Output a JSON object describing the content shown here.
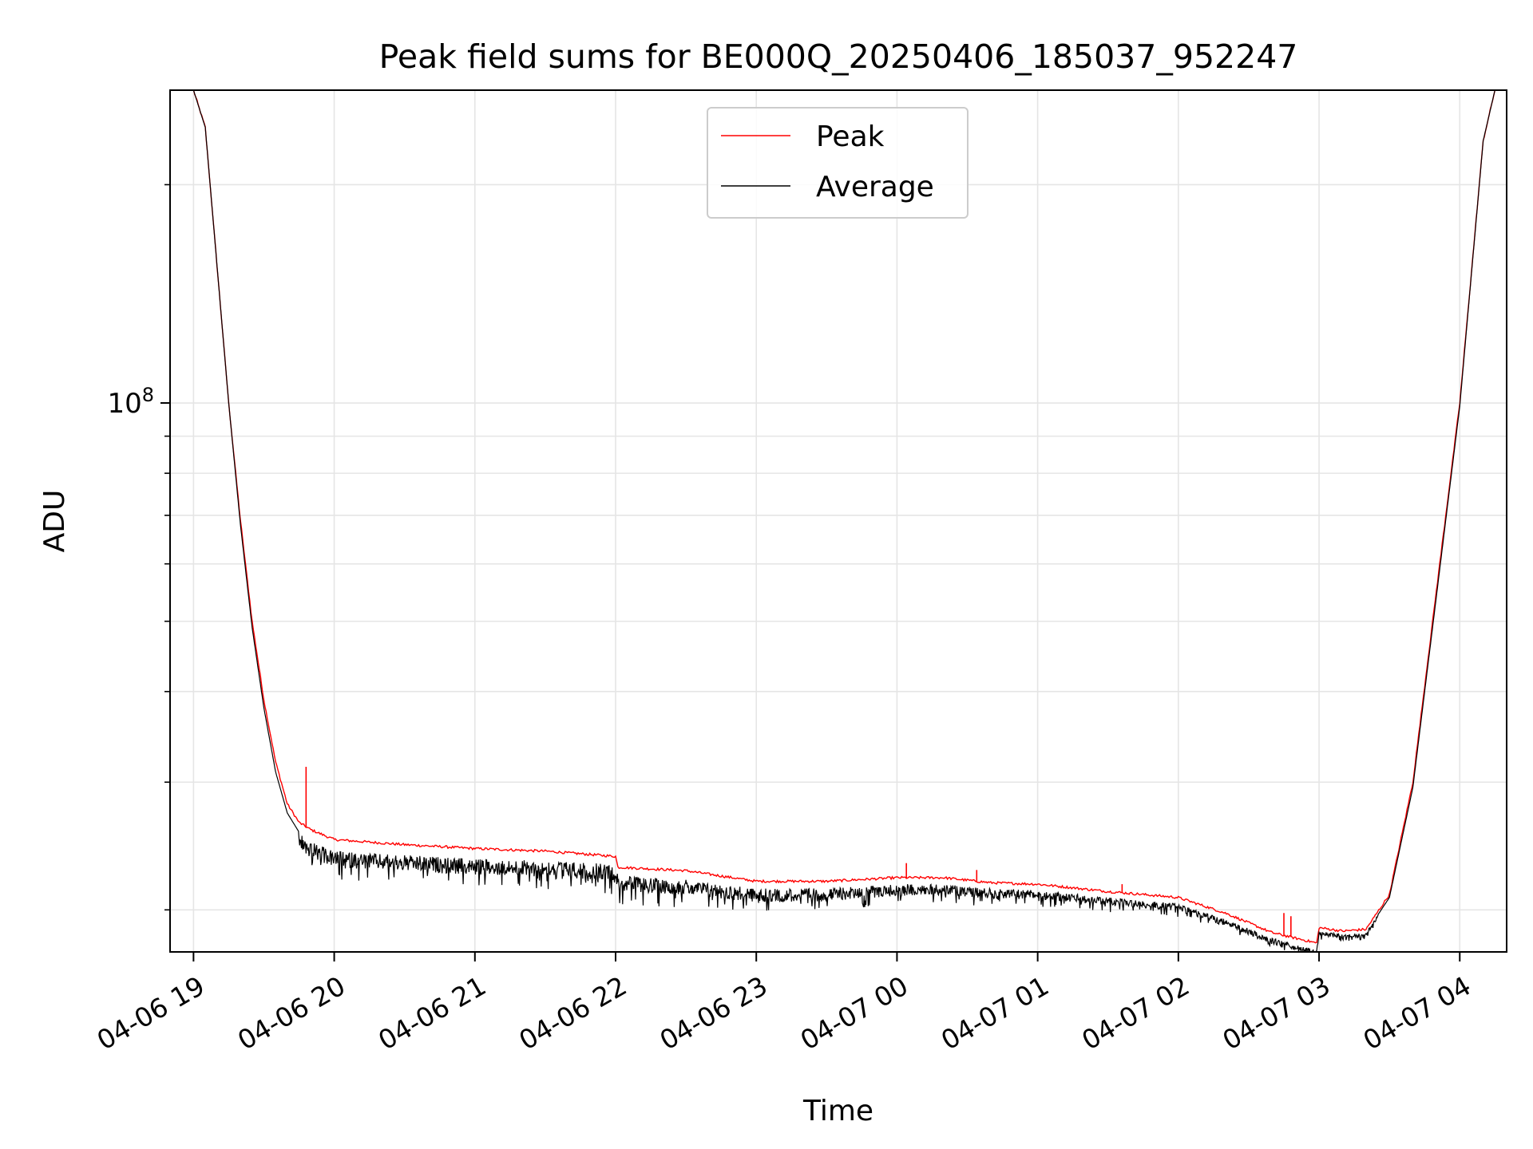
{
  "chart_data": {
    "type": "line",
    "title": "Peak field sums for BE000Q_20250406_185037_952247",
    "xlabel": "Time",
    "ylabel": "ADU",
    "yscale": "log",
    "ylim": [
      17500000,
      270000000
    ],
    "xlim": [
      "2025-04-06 18:50",
      "2025-04-07 04:20"
    ],
    "grid": true,
    "legend": "upper center",
    "x_ticks": [
      "04-06 19",
      "04-06 20",
      "04-06 21",
      "04-06 22",
      "04-06 23",
      "04-07 00",
      "04-07 01",
      "04-07 02",
      "04-07 03",
      "04-07 04"
    ],
    "y_tick_labels": [
      {
        "value": 100000000,
        "base": "10",
        "exp": "8"
      }
    ],
    "y_minor_ticks": [
      20000000,
      30000000,
      40000000,
      50000000,
      60000000,
      70000000,
      80000000,
      90000000,
      200000000
    ],
    "series": [
      {
        "name": "Peak",
        "color": "#ff0000",
        "points": [
          [
            "2025-04-06 19:00",
            270000000
          ],
          [
            "2025-04-06 19:05",
            240000000
          ],
          [
            "2025-04-06 19:10",
            155000000
          ],
          [
            "2025-04-06 19:15",
            100000000
          ],
          [
            "2025-04-06 19:20",
            69000000
          ],
          [
            "2025-04-06 19:25",
            50000000
          ],
          [
            "2025-04-06 19:30",
            39000000
          ],
          [
            "2025-04-06 19:35",
            32000000
          ],
          [
            "2025-04-06 19:40",
            28000000
          ],
          [
            "2025-04-06 19:45",
            26400000
          ],
          [
            "2025-04-06 19:50",
            25800000
          ],
          [
            "2025-04-06 20:00",
            25000000
          ],
          [
            "2025-04-06 20:30",
            24600000
          ],
          [
            "2025-04-06 21:00",
            24300000
          ],
          [
            "2025-04-06 21:30",
            24100000
          ],
          [
            "2025-04-06 22:00",
            23700000
          ],
          [
            "2025-04-06 22:01",
            22900000
          ],
          [
            "2025-04-06 22:30",
            22650000
          ],
          [
            "2025-04-06 23:00",
            21900000
          ],
          [
            "2025-04-06 23:30",
            21900000
          ],
          [
            "2025-04-07 00:00",
            22150000
          ],
          [
            "2025-04-07 00:20",
            22150000
          ],
          [
            "2025-04-07 00:40",
            21800000
          ],
          [
            "2025-04-07 01:00",
            21700000
          ],
          [
            "2025-04-07 01:30",
            21200000
          ],
          [
            "2025-04-07 02:00",
            20800000
          ],
          [
            "2025-04-07 02:20",
            19800000
          ],
          [
            "2025-04-07 02:40",
            18600000
          ],
          [
            "2025-04-07 02:59",
            18000000
          ],
          [
            "2025-04-07 03:00",
            18900000
          ],
          [
            "2025-04-07 03:10",
            18700000
          ],
          [
            "2025-04-07 03:20",
            18800000
          ],
          [
            "2025-04-07 03:30",
            21000000
          ],
          [
            "2025-04-07 03:40",
            30000000
          ],
          [
            "2025-04-07 03:50",
            55000000
          ],
          [
            "2025-04-07 04:00",
            100000000
          ],
          [
            "2025-04-07 04:10",
            230000000
          ],
          [
            "2025-04-07 04:15",
            270000000
          ]
        ],
        "spikes": [
          [
            "2025-04-06 19:48",
            31500000
          ],
          [
            "2025-04-07 00:04",
            23200000
          ],
          [
            "2025-04-07 00:34",
            22700000
          ],
          [
            "2025-04-07 01:36",
            21700000
          ],
          [
            "2025-04-07 02:45",
            19800000
          ],
          [
            "2025-04-07 02:48",
            19600000
          ]
        ]
      },
      {
        "name": "Average",
        "color": "#000000",
        "points": [
          [
            "2025-04-06 19:00",
            270000000
          ],
          [
            "2025-04-06 19:05",
            240000000
          ],
          [
            "2025-04-06 19:10",
            155000000
          ],
          [
            "2025-04-06 19:15",
            100000000
          ],
          [
            "2025-04-06 19:20",
            68000000
          ],
          [
            "2025-04-06 19:25",
            49000000
          ],
          [
            "2025-04-06 19:30",
            38000000
          ],
          [
            "2025-04-06 19:35",
            31000000
          ],
          [
            "2025-04-06 19:40",
            27200000
          ],
          [
            "2025-04-06 19:45",
            25600000
          ],
          [
            "2025-04-06 19:50",
            24800000
          ],
          [
            "2025-04-06 20:00",
            24100000
          ],
          [
            "2025-04-06 20:30",
            23800000
          ],
          [
            "2025-04-06 21:00",
            23500000
          ],
          [
            "2025-04-06 21:30",
            23400000
          ],
          [
            "2025-04-06 22:00",
            23100000
          ],
          [
            "2025-04-06 22:01",
            22300000
          ],
          [
            "2025-04-06 22:30",
            22000000
          ],
          [
            "2025-04-06 23:00",
            21400000
          ],
          [
            "2025-04-06 23:30",
            21400000
          ],
          [
            "2025-04-07 00:00",
            21700000
          ],
          [
            "2025-04-07 00:20",
            21700000
          ],
          [
            "2025-04-07 00:40",
            21400000
          ],
          [
            "2025-04-07 01:00",
            21300000
          ],
          [
            "2025-04-07 01:30",
            20800000
          ],
          [
            "2025-04-07 02:00",
            20400000
          ],
          [
            "2025-04-07 02:20",
            19400000
          ],
          [
            "2025-04-07 02:40",
            18300000
          ],
          [
            "2025-04-07 02:59",
            17600000
          ],
          [
            "2025-04-07 03:00",
            18700000
          ],
          [
            "2025-04-07 03:10",
            18500000
          ],
          [
            "2025-04-07 03:20",
            18600000
          ],
          [
            "2025-04-07 03:30",
            20800000
          ],
          [
            "2025-04-07 03:40",
            29500000
          ],
          [
            "2025-04-07 03:50",
            54000000
          ],
          [
            "2025-04-07 04:00",
            99000000
          ],
          [
            "2025-04-07 04:10",
            230000000
          ],
          [
            "2025-04-07 04:15",
            270000000
          ]
        ],
        "noise_fraction": [
          [
            "2025-04-06 19:45",
            0.05
          ],
          [
            "2025-04-06 22:00",
            0.05
          ],
          [
            "2025-04-06 23:30",
            0.04
          ],
          [
            "2025-04-07 01:30",
            0.025
          ],
          [
            "2025-04-07 02:40",
            0.02
          ],
          [
            "2025-04-07 03:25",
            0.01
          ]
        ]
      }
    ]
  }
}
